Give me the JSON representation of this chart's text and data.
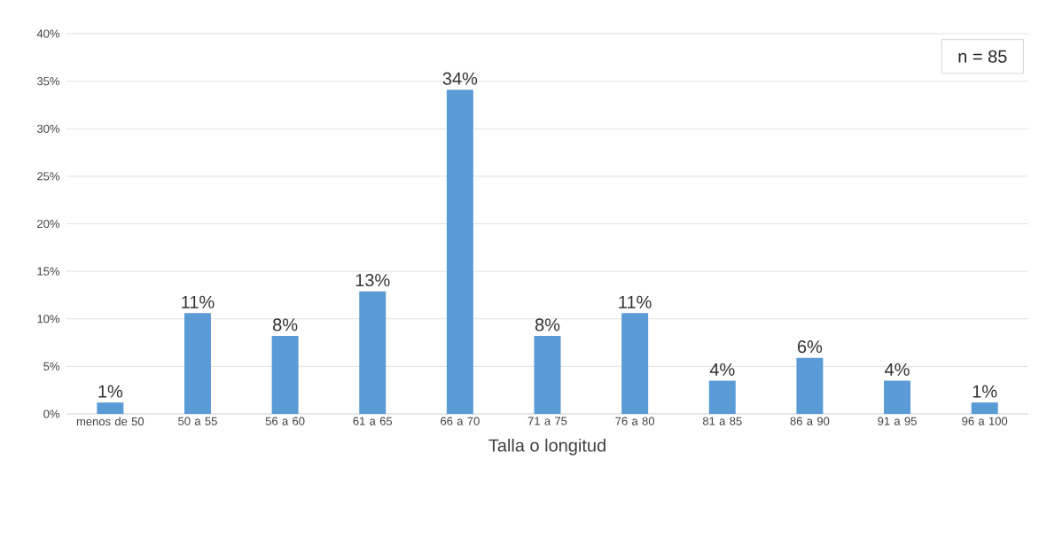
{
  "chart_data": {
    "type": "bar",
    "xlabel": "Talla o longitud",
    "categories": [
      "menos de 50",
      "50 a 55",
      "56 a 60",
      "61 a 65",
      "66 a 70",
      "71 a 75",
      "76 a 80",
      "81 a 85",
      "86 a 90",
      "91 a 95",
      "96 a 100"
    ],
    "values": [
      1.2,
      10.6,
      8.2,
      12.9,
      34.1,
      8.2,
      10.6,
      3.5,
      5.9,
      3.5,
      1.2
    ],
    "value_labels": [
      "1%",
      "11%",
      "8%",
      "13%",
      "34%",
      "8%",
      "11%",
      "4%",
      "6%",
      "4%",
      "1%"
    ],
    "color": "#5b9bd5",
    "ylim": [
      0,
      40
    ],
    "yticks": [
      {
        "value": 0,
        "label": "0%"
      },
      {
        "value": 5,
        "label": "5%"
      },
      {
        "value": 10,
        "label": "10%"
      },
      {
        "value": 15,
        "label": "15%"
      },
      {
        "value": 20,
        "label": "20%"
      },
      {
        "value": 25,
        "label": "25%"
      },
      {
        "value": 30,
        "label": "30%"
      },
      {
        "value": 35,
        "label": "35%"
      },
      {
        "value": 40,
        "label": "40%"
      }
    ],
    "grid": "y",
    "annotations": [
      "n = 85"
    ]
  }
}
